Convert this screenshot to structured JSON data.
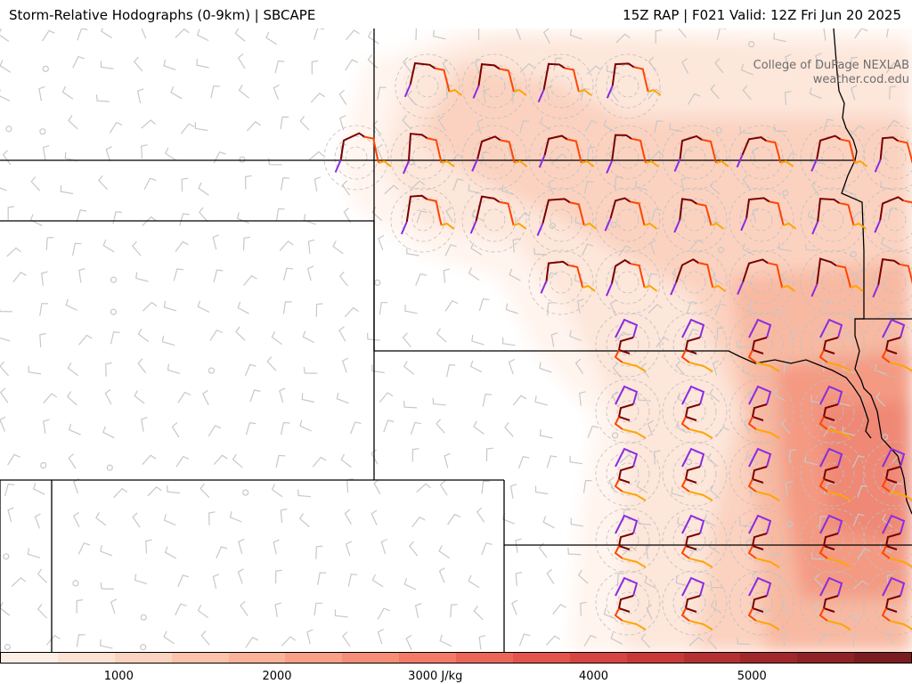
{
  "header": {
    "title_left": "Storm-Relative Hodographs (0-9km) | SBCAPE",
    "title_right": "15Z RAP | F021 Valid: 12Z Fri Jun 20 2025"
  },
  "credit": {
    "line1": "College of DuPage NEXLAB",
    "line2": "weather.cod.edu"
  },
  "colorbar": {
    "unit": "J/kg",
    "ticks": [
      {
        "value": 1000,
        "label": "1000"
      },
      {
        "value": 2000,
        "label": "2000"
      },
      {
        "value": 3000,
        "label": "3000 J/kg"
      },
      {
        "value": 4000,
        "label": "4000"
      },
      {
        "value": 5000,
        "label": "5000"
      }
    ],
    "range": [
      250,
      6000
    ],
    "colors": [
      "#fdeee6",
      "#fde2d4",
      "#fcd3c0",
      "#fcc3ab",
      "#fbb298",
      "#f9a087",
      "#f68d76",
      "#f27a66",
      "#ec6658",
      "#e3544c",
      "#d64541",
      "#c73a38",
      "#b53031",
      "#a1282a",
      "#8e2225",
      "#7a1d20"
    ]
  },
  "fill_colors": [
    "#fff4ee",
    "#fde6da",
    "#fbd2c0",
    "#f8b9a2",
    "#f49a83",
    "#ef8874"
  ],
  "hodograph_colors": {
    "0-3km": "#7a0000",
    "3-6km": "#ff4500",
    "6-9km": "#ffa500",
    "surface": "#8a2be2"
  },
  "borders_color": "#000000",
  "barb_color": "#c8c8c8"
}
